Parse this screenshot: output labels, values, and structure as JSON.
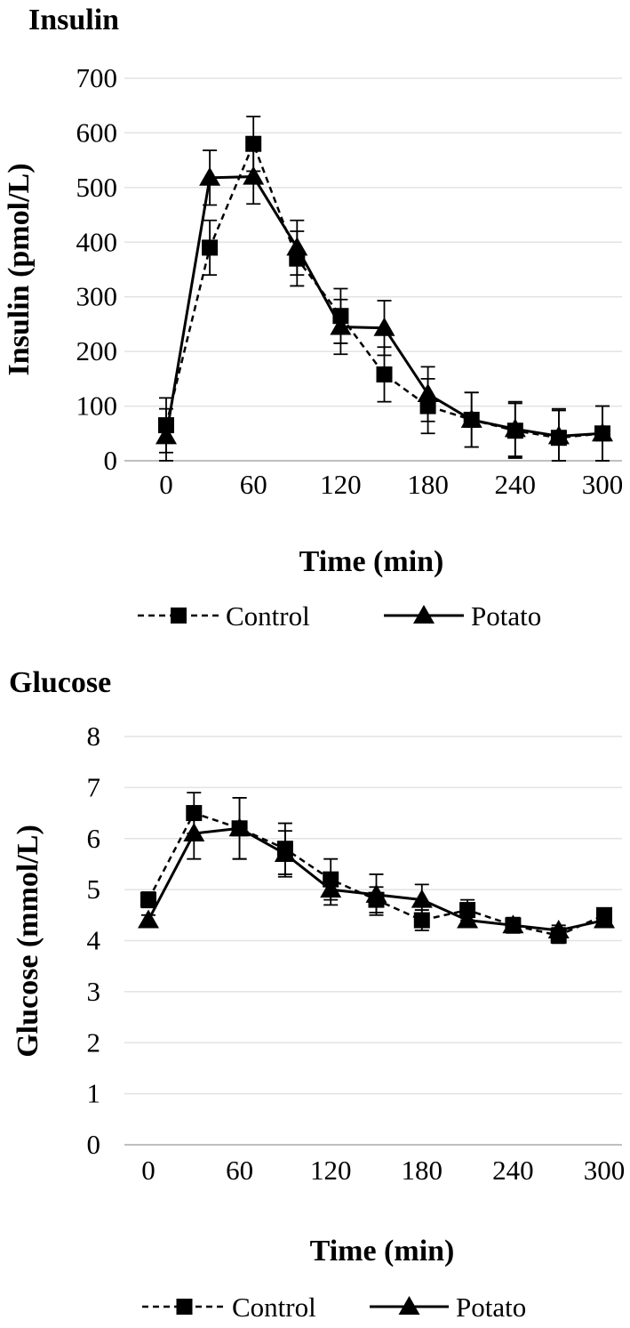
{
  "chart_data": [
    {
      "type": "line",
      "title": "Insulin",
      "xlabel": "Time (min)",
      "ylabel": "Insulin (pmol/L)",
      "xlim": [
        0,
        300
      ],
      "ylim": [
        0,
        700
      ],
      "xticks": [
        "0",
        "60",
        "120",
        "180",
        "240",
        "300"
      ],
      "yticks": [
        "0",
        "100",
        "200",
        "300",
        "400",
        "500",
        "600",
        "700"
      ],
      "grid": "horizontal",
      "legend": "bottom",
      "x": [
        0,
        30,
        60,
        90,
        120,
        150,
        180,
        210,
        240,
        270,
        300
      ],
      "series": [
        {
          "name": "Control",
          "marker": "square",
          "line": "dashed",
          "values": [
            65,
            390,
            580,
            370,
            265,
            158,
            100,
            75,
            55,
            42,
            50
          ],
          "errors": [
            50,
            50,
            50,
            50,
            50,
            50,
            50,
            50,
            50,
            50,
            50
          ]
        },
        {
          "name": "Potato",
          "marker": "triangle",
          "line": "solid",
          "values": [
            45,
            518,
            520,
            390,
            245,
            243,
            122,
            75,
            58,
            45,
            50
          ],
          "errors": [
            50,
            50,
            50,
            50,
            50,
            50,
            50,
            50,
            50,
            50,
            50
          ]
        }
      ]
    },
    {
      "type": "line",
      "title": "Glucose",
      "xlabel": "Time (min)",
      "ylabel": "Glucose (mmol/L)",
      "xlim": [
        0,
        300
      ],
      "ylim": [
        0,
        8
      ],
      "xticks": [
        "0",
        "60",
        "120",
        "180",
        "240",
        "300"
      ],
      "yticks": [
        "0",
        "1",
        "2",
        "3",
        "4",
        "5",
        "6",
        "7",
        "8"
      ],
      "grid": "horizontal",
      "legend": "bottom",
      "x": [
        0,
        30,
        60,
        90,
        120,
        150,
        180,
        210,
        240,
        270,
        300
      ],
      "series": [
        {
          "name": "Control",
          "marker": "square",
          "line": "dashed",
          "values": [
            4.8,
            6.5,
            6.2,
            5.8,
            5.2,
            4.8,
            4.4,
            4.6,
            4.3,
            4.1,
            4.5
          ],
          "errors": [
            0.15,
            0.4,
            0.6,
            0.5,
            0.4,
            0.25,
            0.2,
            0.2,
            0.15,
            0.15,
            0.1
          ]
        },
        {
          "name": "Potato",
          "marker": "triangle",
          "line": "solid",
          "values": [
            4.4,
            6.1,
            6.2,
            5.7,
            5.0,
            4.9,
            4.8,
            4.4,
            4.3,
            4.2,
            4.4
          ],
          "errors": [
            0.1,
            0.5,
            0.6,
            0.45,
            0.3,
            0.4,
            0.3,
            0.1,
            0.1,
            0.1,
            0.1
          ]
        }
      ]
    }
  ]
}
